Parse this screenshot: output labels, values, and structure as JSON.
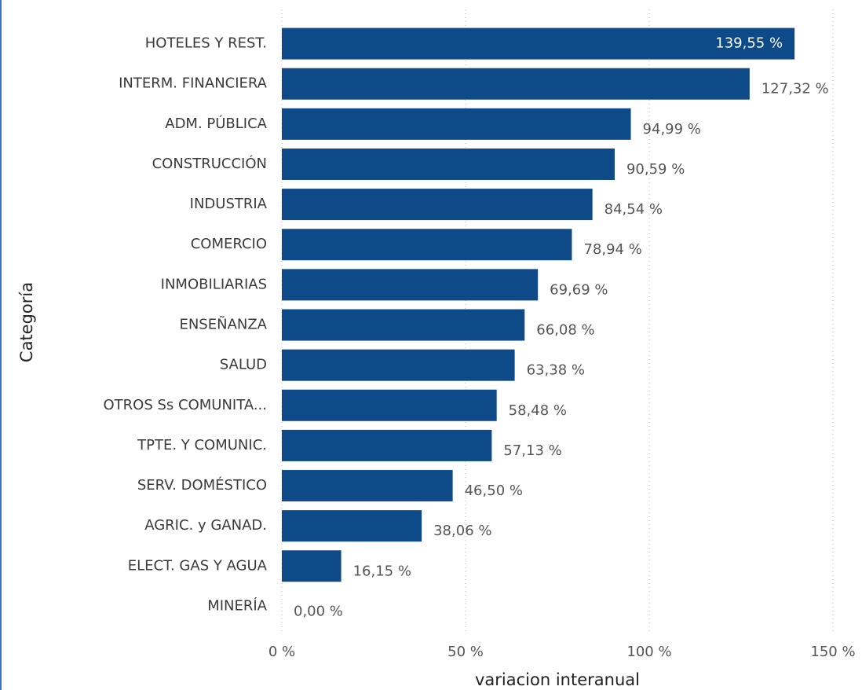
{
  "chart_data": {
    "type": "bar",
    "orientation": "horizontal",
    "x_axis_label": "variacion interanual",
    "y_axis_label": "Categoría",
    "categories": [
      "HOTELES Y REST.",
      "INTERM. FINANCIERA",
      "ADM. PÚBLICA",
      "CONSTRUCCIÓN",
      "INDUSTRIA",
      "COMERCIO",
      "INMOBILIARIAS",
      "ENSEÑANZA",
      "SALUD",
      "OTROS Ss COMUNITA...",
      "TPTE. Y COMUNIC.",
      "SERV. DOMÉSTICO",
      "AGRIC. y GANAD.",
      "ELECT. GAS Y AGUA",
      "MINERÍA"
    ],
    "values": [
      139.55,
      127.32,
      94.99,
      90.59,
      84.54,
      78.94,
      69.69,
      66.08,
      63.38,
      58.48,
      57.13,
      46.5,
      38.06,
      16.15,
      0.0
    ],
    "value_labels": [
      "139,55 %",
      "127,32 %",
      "94,99 %",
      "90,59 %",
      "84,54 %",
      "78,94 %",
      "69,69 %",
      "66,08 %",
      "63,38 %",
      "58,48 %",
      "57,13 %",
      "46,50 %",
      "38,06 %",
      "16,15 %",
      "0,00 %"
    ],
    "color": "#0d4a87",
    "xlim": [
      0,
      150
    ],
    "xticks": [
      {
        "value": 0,
        "label": "0 %"
      },
      {
        "value": 50,
        "label": "50 %"
      },
      {
        "value": 100,
        "label": "100 %"
      },
      {
        "value": 150,
        "label": "150 %"
      }
    ],
    "grid": true
  }
}
